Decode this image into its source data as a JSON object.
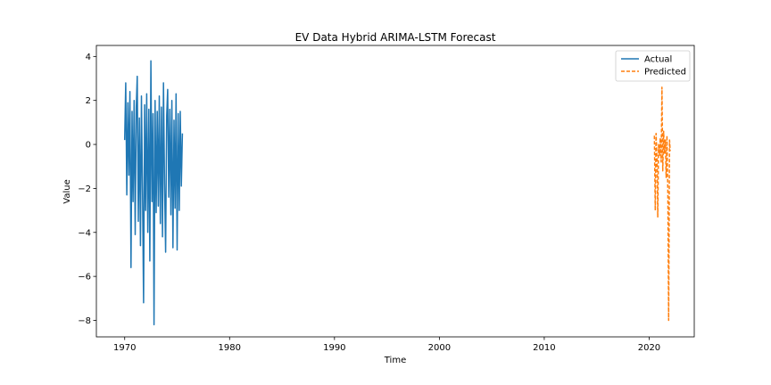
{
  "chart_data": {
    "type": "line",
    "title": "EV Data Hybrid ARIMA-LSTM Forecast",
    "xlabel": "Time",
    "ylabel": "Value",
    "xlim": [
      1967.3,
      2024.3
    ],
    "ylim": [
      -8.75,
      4.5
    ],
    "xticks": [
      1970,
      1980,
      1990,
      2000,
      2010,
      2020
    ],
    "yticks": [
      4,
      2,
      0,
      -2,
      -4,
      -6,
      -8
    ],
    "grid": false,
    "legend": "top-right",
    "series": [
      {
        "name": "Actual",
        "color": "#1f77b4",
        "style": "solid",
        "x": [
          1970.0,
          1970.1,
          1970.2,
          1970.3,
          1970.4,
          1970.5,
          1970.6,
          1970.7,
          1970.8,
          1970.9,
          1971.0,
          1971.1,
          1971.2,
          1971.3,
          1971.4,
          1971.5,
          1971.6,
          1971.7,
          1971.8,
          1971.9,
          1972.0,
          1972.1,
          1972.2,
          1972.3,
          1972.4,
          1972.5,
          1972.6,
          1972.7,
          1972.8,
          1972.9,
          1973.0,
          1973.1,
          1973.2,
          1973.3,
          1973.4,
          1973.5,
          1973.6,
          1973.7,
          1973.8,
          1973.9,
          1974.0,
          1974.1,
          1974.2,
          1974.3,
          1974.4,
          1974.5,
          1974.6,
          1974.7,
          1974.8,
          1974.9,
          1975.0,
          1975.1,
          1975.2,
          1975.3,
          1975.4,
          1975.5
        ],
        "y": [
          0.2,
          2.8,
          -2.3,
          1.9,
          -1.4,
          2.4,
          -5.6,
          1.5,
          -2.6,
          2.0,
          -4.1,
          1.7,
          3.1,
          -3.5,
          1.2,
          -4.6,
          2.2,
          -2.1,
          -7.2,
          1.8,
          -3.0,
          2.3,
          -4.0,
          1.6,
          -5.3,
          3.8,
          -2.6,
          1.4,
          -8.2,
          2.0,
          -3.1,
          1.5,
          -2.8,
          2.2,
          -3.6,
          1.7,
          -4.2,
          2.8,
          -1.8,
          -4.9,
          1.3,
          2.5,
          -2.4,
          1.6,
          -3.2,
          2.0,
          -4.7,
          1.1,
          -2.9,
          2.3,
          -4.8,
          1.4,
          -3.0,
          1.5,
          -1.9,
          0.5
        ]
      },
      {
        "name": "Predicted",
        "color": "#ff7f0e",
        "style": "dashed",
        "x": [
          2020.5,
          2020.58,
          2020.66,
          2020.74,
          2020.82,
          2020.9,
          2020.98,
          2021.06,
          2021.14,
          2021.22,
          2021.3,
          2021.38,
          2021.46,
          2021.54,
          2021.62,
          2021.7,
          2021.78,
          2021.86,
          2021.94,
          2022.0
        ],
        "y": [
          0.4,
          -3.0,
          0.5,
          -0.6,
          -3.3,
          0.0,
          -0.5,
          0.3,
          -0.8,
          2.6,
          -1.2,
          0.6,
          -0.4,
          0.2,
          -1.5,
          0.4,
          -2.2,
          -8.0,
          0.2,
          -0.3
        ]
      }
    ]
  }
}
